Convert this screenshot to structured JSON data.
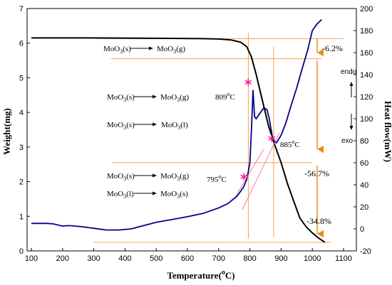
{
  "chart_data": {
    "type": "line",
    "xlabel": "Temperature(",
    "xlabel_sup": "o",
    "xlabel_end": "C)",
    "ylabel_left": "Weight(mg)",
    "ylabel_right": "Heat flow(mW)",
    "xlim": [
      100,
      1100
    ],
    "ylim_left": [
      0,
      7
    ],
    "ylim_right": [
      -20,
      200
    ],
    "x_ticks": [
      "100",
      "200",
      "300",
      "400",
      "500",
      "600",
      "700",
      "800",
      "900",
      "1000",
      "1100"
    ],
    "y_left_ticks": [
      "0",
      "1",
      "2",
      "3",
      "4",
      "5",
      "6",
      "7"
    ],
    "y_right_ticks": [
      "-20",
      "0",
      "20",
      "40",
      "60",
      "80",
      "100",
      "120",
      "140",
      "160",
      "180",
      "200"
    ],
    "colors": {
      "weight": "#000000",
      "heat": "#00008b",
      "guide": "#f5a055",
      "arrow": "#f08a1e",
      "marker": "#ff1493",
      "pink_line": "#ff69b4"
    },
    "series": [
      {
        "axis": "left",
        "x": [
          100,
          300,
          500,
          650,
          700,
          740,
          770,
          790,
          805,
          820,
          840,
          860,
          880,
          900,
          920,
          940,
          960,
          980,
          1000,
          1020,
          1040
        ],
        "values": [
          6.15,
          6.15,
          6.14,
          6.13,
          6.12,
          6.09,
          6.03,
          5.9,
          5.6,
          5.1,
          4.35,
          3.6,
          3.05,
          2.55,
          1.95,
          1.45,
          0.95,
          0.7,
          0.52,
          0.37,
          0.25
        ]
      },
      {
        "axis": "right",
        "x": [
          100,
          150,
          170,
          200,
          220,
          260,
          300,
          340,
          380,
          420,
          460,
          500,
          560,
          600,
          650,
          700,
          730,
          760,
          780,
          790,
          795,
          800,
          805,
          810,
          815,
          820,
          830,
          845,
          855,
          862,
          868,
          872,
          878,
          885,
          900,
          915,
          930,
          950,
          970,
          985,
          1000,
          1015,
          1030
        ],
        "values": [
          5,
          5,
          4.5,
          2.5,
          3,
          2,
          0.5,
          -1,
          -1,
          0,
          3,
          6,
          9,
          11,
          14,
          19,
          23,
          30,
          38,
          45,
          52,
          60,
          90,
          126,
          102,
          100,
          104,
          110,
          108,
          100,
          90,
          84,
          80,
          78,
          85,
          96,
          110,
          128,
          148,
          162,
          180,
          186,
          190
        ]
      }
    ],
    "annotations": {
      "r1_left": "MoO",
      "r1_left_sub": "3",
      "r1_left_end": "(s)",
      "r1_right": "MoO",
      "r1_right_sub": "3",
      "r1_right_end": "(g)",
      "r2_left": "MoO",
      "r2_left_sub": "3",
      "r2_left_end": "(s)",
      "r2_right": "MoO",
      "r2_right_sub": "3",
      "r2_right_end": "(g)",
      "r3_left": "MoO",
      "r3_left_sub": "3",
      "r3_left_end": "(s)",
      "r3_right": "MoO",
      "r3_right_sub": "3",
      "r3_right_end": "(l)",
      "r4_left": "MoO",
      "r4_left_sub": "3",
      "r4_left_end": "(s)",
      "r4_right": "MoO",
      "r4_right_sub": "3",
      "r4_right_end": "(g)",
      "r5_left": "MoO",
      "r5_left_sub": "3",
      "r5_left_end": "(l)",
      "r5_right": "MoO",
      "r5_right_sub": "3",
      "r5_right_end": "(s)",
      "t809": "809",
      "t809_sup": "o",
      "t809_end": "C",
      "t885": "885",
      "t885_sup": "o",
      "t885_end": "C",
      "t795": "795",
      "t795_sup": "o",
      "t795_end": "C",
      "pct1": "-6.2%",
      "pct2": "-56.7%",
      "pct3": "-34.8%",
      "endo": "endo",
      "exo": "exo",
      "marker": "*"
    }
  }
}
